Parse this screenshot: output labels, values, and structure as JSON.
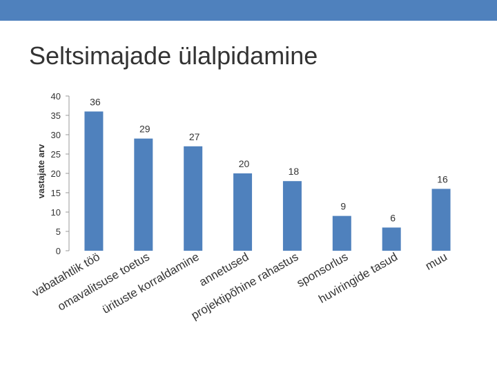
{
  "slide": {
    "title": "Seltsimajade ülalpidamine"
  },
  "colors": {
    "header_bar": "#4f81bd",
    "bar": "#4f81bd",
    "text": "#333333"
  },
  "chart_data": {
    "type": "bar",
    "title": "",
    "xlabel": "",
    "ylabel": "vastajate arv",
    "ylim": [
      0,
      40
    ],
    "yticks": [
      0,
      5,
      10,
      15,
      20,
      25,
      30,
      35,
      40
    ],
    "categories": [
      "vabatahtlik töö",
      "omavalitsuse toetus",
      "ürituste korraldamine",
      "annetused",
      "projektipõhine rahastus",
      "sponsorlus",
      "huviringide tasud",
      "muu"
    ],
    "values": [
      36,
      29,
      27,
      20,
      18,
      9,
      6,
      16
    ],
    "grid": false,
    "legend": "none"
  }
}
